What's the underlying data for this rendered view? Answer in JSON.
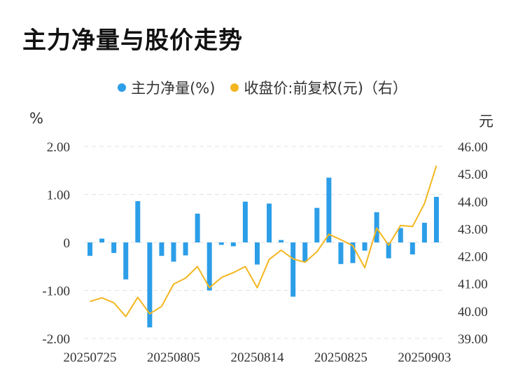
{
  "chart_data": {
    "type": "bar",
    "title": "主力净量与股价走势",
    "legend": [
      {
        "label": "主力净量(%)",
        "color": "#2c9ee8"
      },
      {
        "label": "收盘价:前复权(元)（右）",
        "color": "#f3b61f"
      }
    ],
    "left_unit": "%",
    "right_unit": "元",
    "left_ylim": [
      -2,
      2
    ],
    "right_ylim": [
      39,
      46
    ],
    "left_ticks": [
      "2.00",
      "1.00",
      "0",
      "-1.00",
      "-2.00"
    ],
    "right_ticks": [
      "46.00",
      "45.00",
      "44.00",
      "43.00",
      "42.00",
      "41.00",
      "40.00",
      "39.00"
    ],
    "x_tick_labels": [
      {
        "index": 0,
        "label": "20250725"
      },
      {
        "index": 7,
        "label": "20250805"
      },
      {
        "index": 14,
        "label": "20250814"
      },
      {
        "index": 21,
        "label": "20250825"
      },
      {
        "index": 28,
        "label": "20250903"
      }
    ],
    "series": [
      {
        "name": "主力净量(%)",
        "type": "bar",
        "axis": "left",
        "color": "#2c9ee8",
        "values": [
          -0.28,
          0.08,
          -0.22,
          -0.77,
          0.86,
          -1.77,
          -0.28,
          -0.4,
          -0.27,
          0.6,
          -1.0,
          -0.05,
          -0.08,
          0.85,
          -0.46,
          0.81,
          0.05,
          -1.13,
          -0.4,
          0.72,
          1.35,
          -0.45,
          -0.43,
          -0.17,
          0.63,
          -0.33,
          0.3,
          -0.25,
          0.41,
          0.95
        ]
      },
      {
        "name": "收盘价:前复权(元)（右）",
        "type": "line",
        "axis": "right",
        "color": "#f3b61f",
        "values": [
          40.35,
          40.48,
          40.3,
          39.8,
          40.5,
          39.9,
          40.17,
          40.98,
          41.2,
          41.62,
          40.85,
          41.22,
          41.4,
          41.62,
          40.85,
          41.88,
          42.22,
          41.9,
          41.78,
          42.16,
          42.8,
          42.6,
          42.38,
          41.58,
          43.02,
          42.4,
          43.12,
          43.08,
          43.92,
          45.3
        ]
      }
    ]
  }
}
